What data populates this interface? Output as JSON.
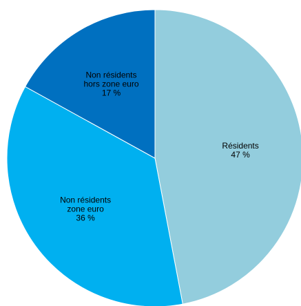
{
  "chart_data": {
    "type": "pie",
    "title": "",
    "start_angle_deg": 0,
    "direction": "clockwise",
    "slices": [
      {
        "label_lines": [
          "Résidents"
        ],
        "value": 47,
        "value_text": "47 %",
        "color": "#93CDDD"
      },
      {
        "label_lines": [
          "Non résidents",
          "zone euro"
        ],
        "value": 36,
        "value_text": "36 %",
        "color": "#00B0F0"
      },
      {
        "label_lines": [
          "Non résidents",
          "hors zone euro"
        ],
        "value": 17,
        "value_text": "17 %",
        "color": "#0070C0"
      }
    ],
    "legend": "none"
  }
}
